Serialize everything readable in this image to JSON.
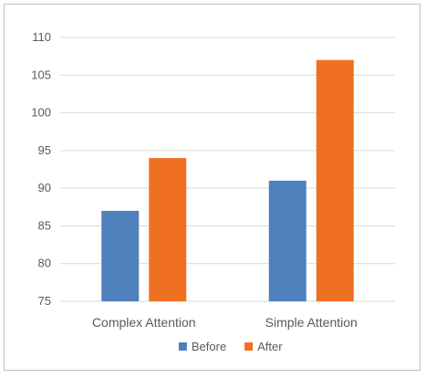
{
  "chart_data": {
    "type": "bar",
    "categories": [
      "Complex Attention",
      "Simple Attention"
    ],
    "series": [
      {
        "name": "Before",
        "values": [
          87,
          91
        ],
        "color": "#4F81BD"
      },
      {
        "name": "After",
        "values": [
          94,
          107
        ],
        "color": "#F07021"
      }
    ],
    "ylim": [
      75,
      110
    ],
    "yticks": [
      75,
      80,
      85,
      90,
      95,
      100,
      105,
      110
    ],
    "grid": true,
    "legend_position": "bottom",
    "gridline_color": "#d9d9d9"
  }
}
